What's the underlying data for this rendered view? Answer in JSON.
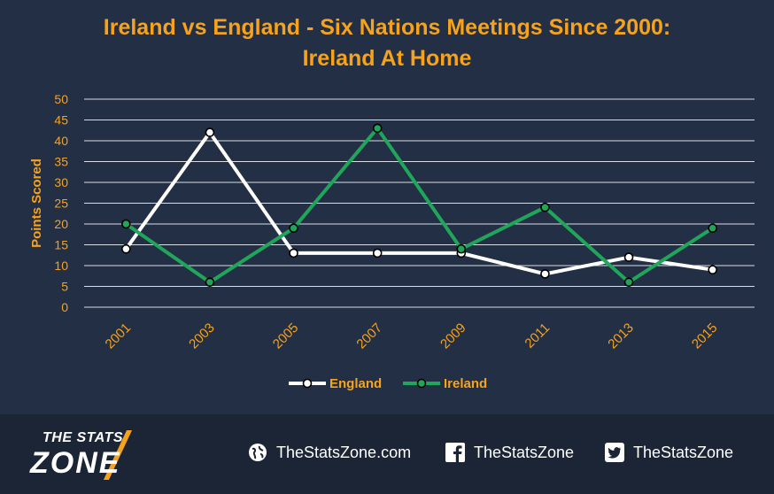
{
  "chart_data": {
    "type": "line",
    "title": [
      "Ireland vs England - Six Nations Meetings Since 2000:",
      "Ireland At Home"
    ],
    "ylabel": "Points Scored",
    "xlabel": "",
    "ylim": [
      0,
      50
    ],
    "yticks": [
      0,
      5,
      10,
      15,
      20,
      25,
      30,
      35,
      40,
      45,
      50
    ],
    "grid": true,
    "legend_position": "bottom",
    "categories": [
      "2001",
      "2003",
      "2005",
      "2007",
      "2009",
      "2011",
      "2013",
      "2015"
    ],
    "series": [
      {
        "name": "England",
        "color": "#ffffff",
        "values": [
          14,
          42,
          13,
          13,
          13,
          8,
          12,
          9
        ]
      },
      {
        "name": "Ireland",
        "color": "#1fa65a",
        "values": [
          20,
          6,
          19,
          43,
          14,
          24,
          6,
          19
        ]
      }
    ],
    "colors": {
      "title": "#f7a21b",
      "axis_text": "#f7a21b",
      "grid": "#d9dde3",
      "background": "#232f45"
    }
  },
  "footer": {
    "logo_line1": "THE STATS",
    "logo_line2": "ZONE",
    "website": "TheStatsZone.com",
    "facebook": "TheStatsZone",
    "twitter": "TheStatsZone",
    "icons": [
      "globe-icon",
      "facebook-icon",
      "twitter-icon"
    ]
  }
}
